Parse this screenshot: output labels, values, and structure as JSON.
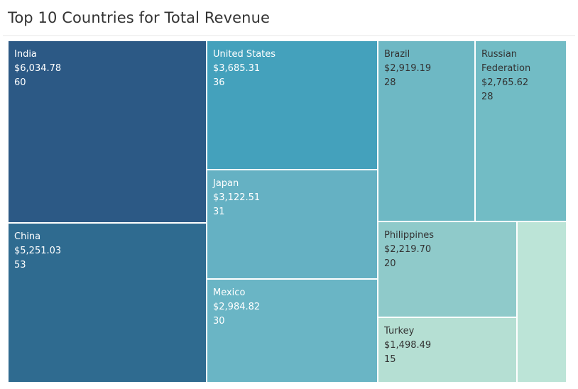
{
  "chart_data": {
    "type": "treemap",
    "title": "Top 10 Countries for Total Revenue",
    "items": [
      {
        "name": "India",
        "value": "$6,034.78",
        "count": "60",
        "color": "#2c5985"
      },
      {
        "name": "China",
        "value": "$5,251.03",
        "count": "53",
        "color": "#2f6b90"
      },
      {
        "name": "United States",
        "value": "$3,685.31",
        "count": "36",
        "color": "#44a1bc"
      },
      {
        "name": "Japan",
        "value": "$3,122.51",
        "count": "31",
        "color": "#65b1c3"
      },
      {
        "name": "Mexico",
        "value": "$2,984.82",
        "count": "30",
        "color": "#6ab5c5"
      },
      {
        "name": "Brazil",
        "value": "$2,919.19",
        "count": "28",
        "color": "#6eb8c4"
      },
      {
        "name": "Russian Federation",
        "value": "$2,765.62",
        "count": "28",
        "color": "#72bcc5"
      },
      {
        "name": "Philippines",
        "value": "$2,219.70",
        "count": "20",
        "color": "#8fcaca"
      },
      {
        "name": "Turkey",
        "value": "$1,498.49",
        "count": "15",
        "color": "#b5dfd3"
      },
      {
        "name": "",
        "value": "",
        "count": "",
        "color": "#bce4d7"
      }
    ]
  }
}
